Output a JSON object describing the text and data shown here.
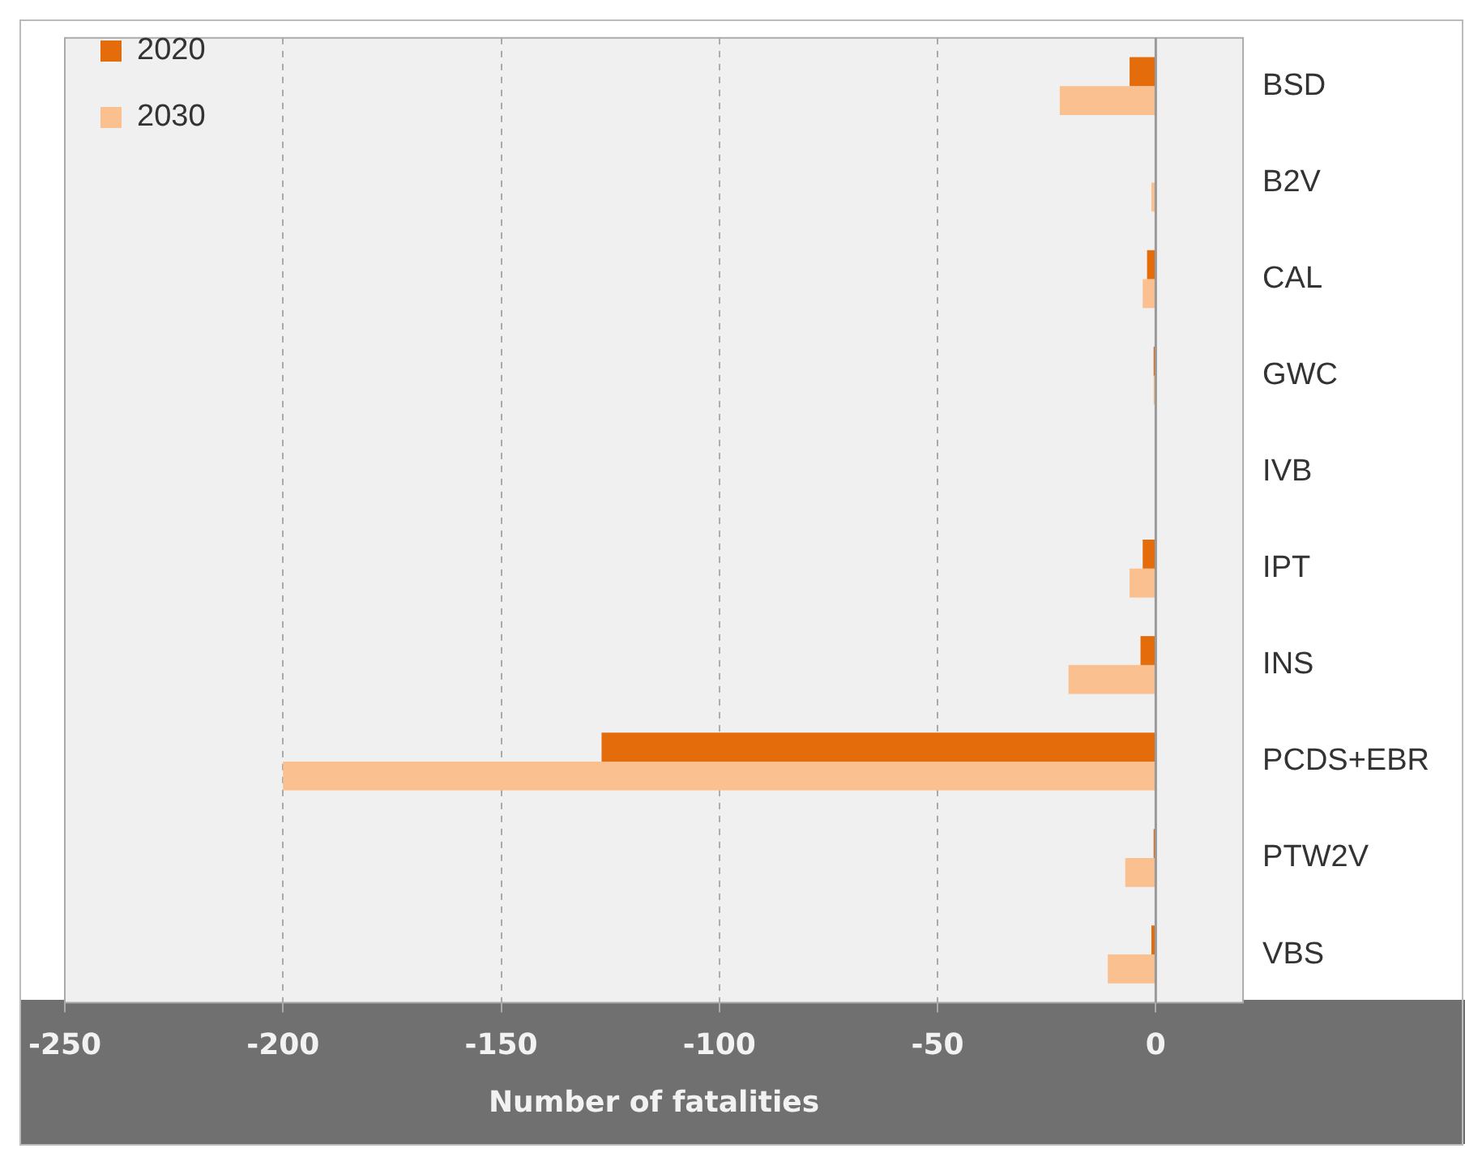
{
  "chart_data": {
    "type": "bar",
    "orientation": "horizontal",
    "xlabel": "Number of fatalities",
    "categories": [
      "BSD",
      "B2V",
      "CAL",
      "GWC",
      "IVB",
      "IPT",
      "INS",
      "PCDS+EBR",
      "PTW2V",
      "VBS"
    ],
    "series": [
      {
        "name": "2020",
        "color": "#e46c0a",
        "values": [
          -6,
          0,
          -2,
          -0.5,
          0,
          -3,
          -3.5,
          -127,
          -0.5,
          -1
        ]
      },
      {
        "name": "2030",
        "color": "#fac090",
        "values": [
          -22,
          -1,
          -3,
          -0.5,
          0,
          -6,
          -20,
          -200,
          -7,
          -11
        ]
      }
    ],
    "xlim": [
      -250,
      20
    ],
    "xticks": [
      -250,
      -200,
      -150,
      -100,
      -50,
      0
    ],
    "grid": "x",
    "legend": "top left"
  }
}
